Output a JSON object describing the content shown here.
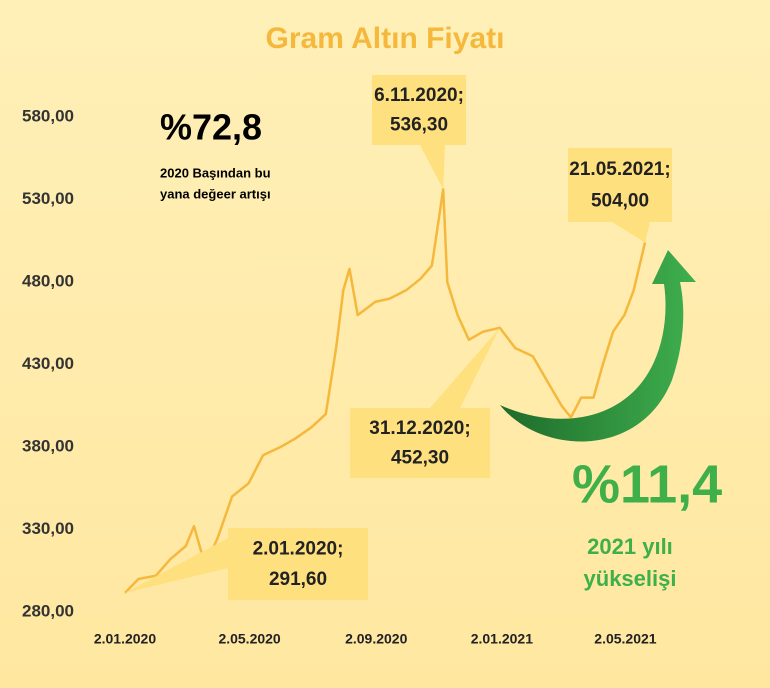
{
  "chart_data": {
    "type": "line",
    "title": "Gram Altın Fiyatı",
    "color": "#F5B83D",
    "x": [
      "2.01.2020",
      "15.01.2020",
      "1.02.2020",
      "15.02.2020",
      "1.03.2020",
      "9.03.2020",
      "20.03.2020",
      "1.04.2020",
      "15.04.2020",
      "1.05.2020",
      "15.05.2020",
      "1.06.2020",
      "15.06.2020",
      "1.07.2020",
      "15.07.2020",
      "25.07.2020",
      "1.08.2020",
      "7.08.2020",
      "15.08.2020",
      "1.09.2020",
      "15.09.2020",
      "1.10.2020",
      "15.10.2020",
      "26.10.2020",
      "6.11.2020",
      "10.11.2020",
      "20.11.2020",
      "1.12.2020",
      "15.12.2020",
      "31.12.2020",
      "15.01.2021",
      "1.02.2021",
      "15.02.2021",
      "1.03.2021",
      "10.03.2021",
      "20.03.2021",
      "1.04.2021",
      "10.04.2021",
      "20.04.2021",
      "1.05.2021",
      "10.05.2021",
      "21.05.2021"
    ],
    "values": [
      291.6,
      300,
      302,
      312,
      320,
      332,
      308,
      325,
      350,
      358,
      375,
      380,
      385,
      392,
      400,
      440,
      475,
      488,
      460,
      468,
      470,
      475,
      482,
      490,
      536.3,
      480,
      460,
      445,
      450,
      452.3,
      440,
      435,
      420,
      405,
      398,
      410,
      410,
      430,
      450,
      460,
      475,
      504
    ],
    "xlim": [
      "2.01.2020",
      "21.05.2021"
    ],
    "xticks": [
      "2.01.2020",
      "2.05.2020",
      "2.09.2020",
      "2.01.2021",
      "2.05.2021"
    ],
    "ylim": [
      280,
      591
    ],
    "yticks": [
      {
        "value": 280,
        "label": "280,00"
      },
      {
        "value": 330,
        "label": "330,00"
      },
      {
        "value": 380,
        "label": "380,00"
      },
      {
        "value": 430,
        "label": "430,00"
      },
      {
        "value": 480,
        "label": "480,00"
      },
      {
        "value": 530,
        "label": "530,00"
      },
      {
        "value": 580,
        "label": "580,00"
      }
    ],
    "annotations": [
      {
        "date": "6.11.2020;",
        "value": 536.3,
        "label": "536,30"
      },
      {
        "date": "21.05.2021;",
        "value": 504,
        "label": "504,00"
      },
      {
        "date": "31.12.2020;",
        "value": 452.3,
        "label": "452,30"
      },
      {
        "date": "2.01.2020;",
        "value": 291.6,
        "label": "291,60"
      }
    ],
    "total_change": "%72,8",
    "total_note": [
      "2020 Başından bu",
      "yana değeer artışı"
    ],
    "ytd_change": "%11,4",
    "ytd_note": [
      "2021 yılı",
      "yükselişi"
    ]
  }
}
